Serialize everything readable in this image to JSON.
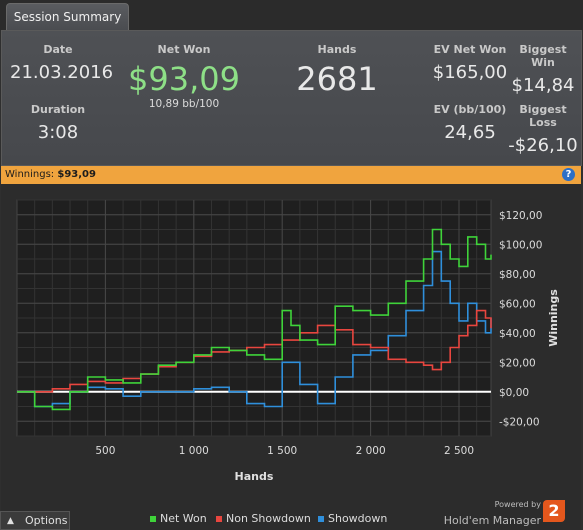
{
  "tab": {
    "label": "Session Summary"
  },
  "summary": {
    "date": {
      "label": "Date",
      "value": "21.03.2016"
    },
    "duration": {
      "label": "Duration",
      "value": "3:08"
    },
    "net_won": {
      "label": "Net Won",
      "value": "$93,09",
      "sub": "10,89 bb/100"
    },
    "hands": {
      "label": "Hands",
      "value": "2681"
    },
    "ev_net_won": {
      "label": "EV Net Won",
      "value": "$165,00"
    },
    "biggest_win": {
      "label": "Biggest Win",
      "value": "$14,84"
    },
    "ev_bb100": {
      "label": "EV (bb/100)",
      "value": "24,65"
    },
    "biggest_loss": {
      "label": "Biggest Loss",
      "value": "-$26,10"
    }
  },
  "winnings_bar": {
    "label": "Winnings:",
    "value": "$93,09",
    "help": "?"
  },
  "footer": {
    "options_label": "Options",
    "powered_by": "Powered by",
    "brand": "Hold'em Manager",
    "brand_num": "2"
  },
  "colors": {
    "net_won": "#3fd33a",
    "non_showdown": "#e8463f",
    "showdown": "#2f8fdb",
    "accent_bar": "#f0a43e"
  },
  "chart_data": {
    "type": "line",
    "xlabel": "Hands",
    "ylabel": "Winnings",
    "xlim": [
      0,
      2681
    ],
    "ylim": [
      -30,
      130
    ],
    "x_ticks": [
      500,
      1000,
      1500,
      2000,
      2500
    ],
    "x_tick_labels": [
      "500",
      "1 000",
      "1 500",
      "2 000",
      "2 500"
    ],
    "y_ticks": [
      -20,
      0,
      20,
      40,
      60,
      80,
      100,
      120
    ],
    "y_tick_labels": [
      "-$20,00",
      "$0,00",
      "$20,00",
      "$40,00",
      "$60,00",
      "$80,00",
      "$100,00",
      "$120,00"
    ],
    "grid": true,
    "legend": "bottom",
    "series": [
      {
        "name": "Net Won",
        "x": [
          0,
          100,
          200,
          300,
          400,
          500,
          600,
          700,
          800,
          900,
          1000,
          1100,
          1200,
          1300,
          1400,
          1500,
          1550,
          1600,
          1700,
          1800,
          1900,
          2000,
          2100,
          2200,
          2300,
          2350,
          2400,
          2450,
          2500,
          2550,
          2600,
          2650,
          2681
        ],
        "y": [
          0,
          -10,
          -12,
          0,
          10,
          8,
          6,
          12,
          18,
          20,
          25,
          30,
          28,
          25,
          22,
          55,
          45,
          35,
          32,
          58,
          55,
          52,
          60,
          75,
          90,
          110,
          100,
          90,
          85,
          105,
          100,
          90,
          93
        ]
      },
      {
        "name": "Non Showdown",
        "x": [
          0,
          100,
          200,
          300,
          400,
          500,
          600,
          700,
          800,
          900,
          1000,
          1100,
          1200,
          1300,
          1400,
          1500,
          1600,
          1700,
          1800,
          1900,
          2000,
          2100,
          2200,
          2300,
          2350,
          2400,
          2450,
          2500,
          2550,
          2600,
          2650,
          2681
        ],
        "y": [
          0,
          0,
          2,
          5,
          7,
          6,
          9,
          12,
          17,
          20,
          24,
          27,
          28,
          30,
          32,
          35,
          40,
          45,
          42,
          32,
          30,
          22,
          20,
          18,
          15,
          20,
          30,
          38,
          45,
          55,
          50,
          43
        ]
      },
      {
        "name": "Showdown",
        "x": [
          0,
          100,
          200,
          300,
          400,
          500,
          600,
          700,
          800,
          900,
          1000,
          1100,
          1200,
          1300,
          1400,
          1500,
          1600,
          1700,
          1800,
          1900,
          2000,
          2100,
          2200,
          2300,
          2350,
          2400,
          2450,
          2500,
          2550,
          2600,
          2650,
          2681
        ],
        "y": [
          0,
          -10,
          -8,
          0,
          3,
          2,
          -3,
          0,
          0,
          0,
          2,
          3,
          0,
          -8,
          -10,
          20,
          5,
          -8,
          10,
          25,
          28,
          38,
          55,
          72,
          95,
          75,
          60,
          48,
          60,
          48,
          40,
          50
        ]
      }
    ]
  }
}
